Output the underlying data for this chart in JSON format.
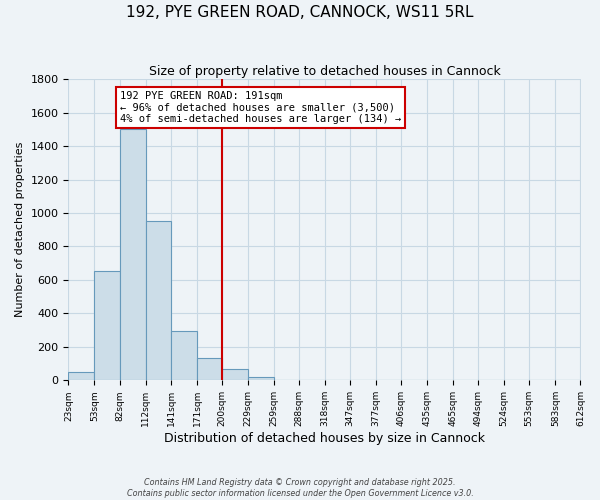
{
  "title": "192, PYE GREEN ROAD, CANNOCK, WS11 5RL",
  "subtitle": "Size of property relative to detached houses in Cannock",
  "xlabel": "Distribution of detached houses by size in Cannock",
  "ylabel": "Number of detached properties",
  "bin_edges": [
    23,
    53,
    82,
    112,
    141,
    171,
    200,
    229,
    259,
    288,
    318,
    347,
    377,
    406,
    435,
    465,
    494,
    524,
    553,
    583,
    612
  ],
  "bin_labels": [
    "23sqm",
    "53sqm",
    "82sqm",
    "112sqm",
    "141sqm",
    "171sqm",
    "200sqm",
    "229sqm",
    "259sqm",
    "288sqm",
    "318sqm",
    "347sqm",
    "377sqm",
    "406sqm",
    "435sqm",
    "465sqm",
    "494sqm",
    "524sqm",
    "553sqm",
    "583sqm",
    "612sqm"
  ],
  "counts": [
    50,
    655,
    1500,
    950,
    295,
    135,
    65,
    20,
    5,
    2,
    0,
    0,
    0,
    0,
    0,
    0,
    0,
    0,
    0,
    0
  ],
  "bar_facecolor": "#ccdde8",
  "bar_edgecolor": "#6699bb",
  "vline_x": 200,
  "vline_color": "#cc0000",
  "ylim": [
    0,
    1800
  ],
  "yticks": [
    0,
    200,
    400,
    600,
    800,
    1000,
    1200,
    1400,
    1600,
    1800
  ],
  "grid_color": "#c8d8e4",
  "background_color": "#eef3f7",
  "annotation_title": "192 PYE GREEN ROAD: 191sqm",
  "annotation_line1": "← 96% of detached houses are smaller (3,500)",
  "annotation_line2": "4% of semi-detached houses are larger (134) →",
  "annotation_box_facecolor": "#ffffff",
  "annotation_border_color": "#cc0000",
  "footer_line1": "Contains HM Land Registry data © Crown copyright and database right 2025.",
  "footer_line2": "Contains public sector information licensed under the Open Government Licence v3.0."
}
